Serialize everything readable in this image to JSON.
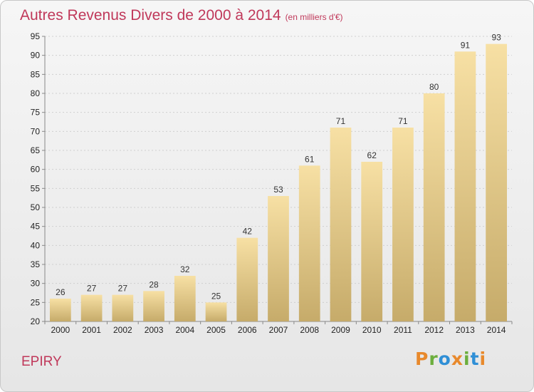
{
  "title": "Autres Revenus Divers de 2000 à 2014",
  "unit_label": "(en milliers d'€)",
  "town": "EPIRY",
  "logo": {
    "letters": [
      "P",
      "r",
      "o",
      "x",
      "i",
      "t",
      "i"
    ],
    "colors": [
      "#e8892c",
      "#6cae3d",
      "#2f8fd6",
      "#e8892c",
      "#6cae3d",
      "#2f8fd6",
      "#e8892c"
    ]
  },
  "colors": {
    "title": "#c0385a",
    "bar_light": "#f7e0a4",
    "bar_dark": "#c6ab6a"
  },
  "chart_data": {
    "type": "bar",
    "categories": [
      "2000",
      "2001",
      "2002",
      "2003",
      "2004",
      "2005",
      "2006",
      "2007",
      "2008",
      "2009",
      "2010",
      "2011",
      "2012",
      "2013",
      "2014"
    ],
    "values": [
      26,
      27,
      27,
      28,
      32,
      25,
      42,
      53,
      61,
      71,
      62,
      71,
      80,
      91,
      93
    ],
    "ylim": [
      20,
      95
    ],
    "yticks": [
      20,
      25,
      30,
      35,
      40,
      45,
      50,
      55,
      60,
      65,
      70,
      75,
      80,
      85,
      90,
      95
    ],
    "grid": true
  }
}
